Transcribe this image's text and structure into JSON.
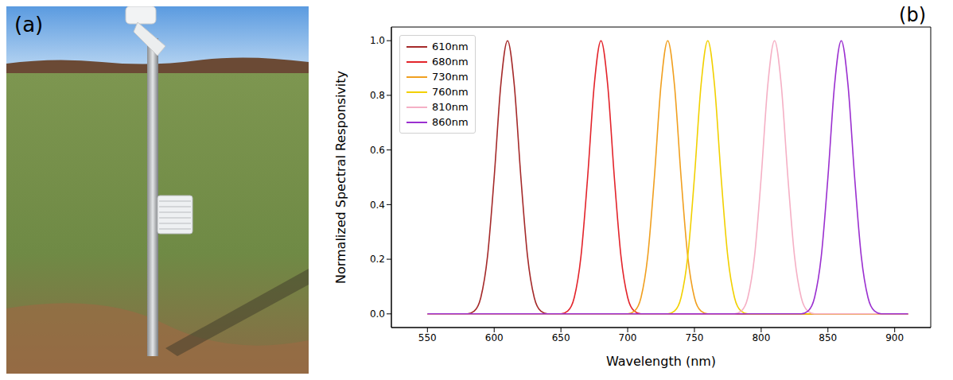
{
  "panel_a": {
    "label": "(a)"
  },
  "chart_data": {
    "type": "line",
    "panel_label": "(b)",
    "x_label": "Wavelength (nm)",
    "y_label": "Normalized Spectral Responsivity",
    "x": [
      550,
      555,
      560,
      565,
      570,
      575,
      580,
      585,
      590,
      595,
      600,
      605,
      610,
      615,
      620,
      625,
      630,
      635,
      640,
      645,
      650,
      655,
      660,
      665,
      670,
      675,
      680,
      685,
      690,
      695,
      700,
      705,
      710,
      715,
      720,
      725,
      730,
      735,
      740,
      745,
      750,
      755,
      760,
      765,
      770,
      775,
      780,
      785,
      790,
      795,
      800,
      805,
      810,
      815,
      820,
      825,
      830,
      835,
      840,
      845,
      850,
      855,
      860,
      865,
      870,
      875,
      880,
      885,
      890,
      895,
      900,
      905,
      910
    ],
    "xlim": [
      523,
      927
    ],
    "xticks": [
      550,
      600,
      650,
      700,
      750,
      800,
      850,
      900
    ],
    "ylim": [
      -0.05,
      1.05
    ],
    "yticks": [
      {
        "value": 0,
        "label": "0.0"
      },
      0.2,
      0.4,
      0.6,
      0.8,
      {
        "value": 1,
        "label": "1.0"
      }
    ],
    "grid": false,
    "legend": "upper left",
    "series": [
      {
        "name": "610nm",
        "color": "#a52a2a",
        "values": [
          0,
          0,
          0,
          0,
          0,
          0,
          0,
          0.01,
          0.06,
          0.21,
          0.5,
          0.84,
          1,
          0.84,
          0.5,
          0.21,
          0.06,
          0.01,
          0,
          0,
          0,
          0,
          0,
          0,
          0,
          0,
          0,
          0,
          0,
          0,
          0,
          0,
          0,
          0,
          0,
          0,
          0,
          0,
          0,
          0,
          0,
          0,
          0,
          0,
          0,
          0,
          0,
          0,
          0,
          0,
          0,
          0,
          0,
          0,
          0,
          0,
          0,
          0,
          0,
          0,
          0,
          0,
          0,
          0,
          0,
          0,
          0,
          0,
          0,
          0,
          0,
          0,
          0
        ]
      },
      {
        "name": "680nm",
        "color": "#e3242b",
        "values": [
          0,
          0,
          0,
          0,
          0,
          0,
          0,
          0,
          0,
          0,
          0,
          0,
          0,
          0,
          0,
          0,
          0,
          0,
          0,
          0,
          0,
          0.01,
          0.06,
          0.21,
          0.5,
          0.84,
          1,
          0.84,
          0.5,
          0.21,
          0.06,
          0.01,
          0,
          0,
          0,
          0,
          0,
          0,
          0,
          0,
          0,
          0,
          0,
          0,
          0,
          0,
          0,
          0,
          0,
          0,
          0,
          0,
          0,
          0,
          0,
          0,
          0,
          0,
          0,
          0,
          0,
          0,
          0,
          0,
          0,
          0,
          0,
          0,
          0,
          0,
          0,
          0,
          0
        ]
      },
      {
        "name": "730nm",
        "color": "#f0a020",
        "values": [
          0,
          0,
          0,
          0,
          0,
          0,
          0,
          0,
          0,
          0,
          0,
          0,
          0,
          0,
          0,
          0,
          0,
          0,
          0,
          0,
          0,
          0,
          0,
          0,
          0,
          0,
          0,
          0,
          0,
          0,
          0,
          0.01,
          0.06,
          0.21,
          0.5,
          0.84,
          1,
          0.84,
          0.5,
          0.21,
          0.06,
          0.01,
          0,
          0,
          0,
          0,
          0,
          0,
          0,
          0,
          0,
          0,
          0,
          0,
          0,
          0,
          0,
          0,
          0,
          0,
          0,
          0,
          0,
          0,
          0,
          0,
          0,
          0,
          0,
          0,
          0,
          0,
          0
        ]
      },
      {
        "name": "760nm",
        "color": "#f2d000",
        "values": [
          0,
          0,
          0,
          0,
          0,
          0,
          0,
          0,
          0,
          0,
          0,
          0,
          0,
          0,
          0,
          0,
          0,
          0,
          0,
          0,
          0,
          0,
          0,
          0,
          0,
          0,
          0,
          0,
          0,
          0,
          0,
          0,
          0,
          0,
          0,
          0,
          0,
          0.01,
          0.06,
          0.21,
          0.5,
          0.84,
          1,
          0.84,
          0.5,
          0.21,
          0.06,
          0.01,
          0,
          0,
          0,
          0,
          0,
          0,
          0,
          0,
          0,
          0,
          0,
          0,
          0,
          0,
          0,
          0,
          0,
          0,
          0,
          0,
          0,
          0,
          0,
          0,
          0
        ]
      },
      {
        "name": "810nm",
        "color": "#f5b0c5",
        "values": [
          0,
          0,
          0,
          0,
          0,
          0,
          0,
          0,
          0,
          0,
          0,
          0,
          0,
          0,
          0,
          0,
          0,
          0,
          0,
          0,
          0,
          0,
          0,
          0,
          0,
          0,
          0,
          0,
          0,
          0,
          0,
          0,
          0,
          0,
          0,
          0,
          0,
          0,
          0,
          0,
          0,
          0,
          0,
          0,
          0,
          0,
          0,
          0.01,
          0.06,
          0.21,
          0.5,
          0.84,
          1,
          0.84,
          0.5,
          0.21,
          0.06,
          0.01,
          0,
          0,
          0,
          0,
          0,
          0,
          0,
          0,
          0,
          0,
          0,
          0,
          0,
          0,
          0
        ]
      },
      {
        "name": "860nm",
        "color": "#9b30d0",
        "values": [
          0,
          0,
          0,
          0,
          0,
          0,
          0,
          0,
          0,
          0,
          0,
          0,
          0,
          0,
          0,
          0,
          0,
          0,
          0,
          0,
          0,
          0,
          0,
          0,
          0,
          0,
          0,
          0,
          0,
          0,
          0,
          0,
          0,
          0,
          0,
          0,
          0,
          0,
          0,
          0,
          0,
          0,
          0,
          0,
          0,
          0,
          0,
          0,
          0,
          0,
          0,
          0,
          0,
          0,
          0,
          0,
          0,
          0.01,
          0.06,
          0.21,
          0.5,
          0.84,
          1,
          0.84,
          0.5,
          0.21,
          0.06,
          0.01,
          0,
          0,
          0,
          0,
          0
        ]
      }
    ]
  }
}
